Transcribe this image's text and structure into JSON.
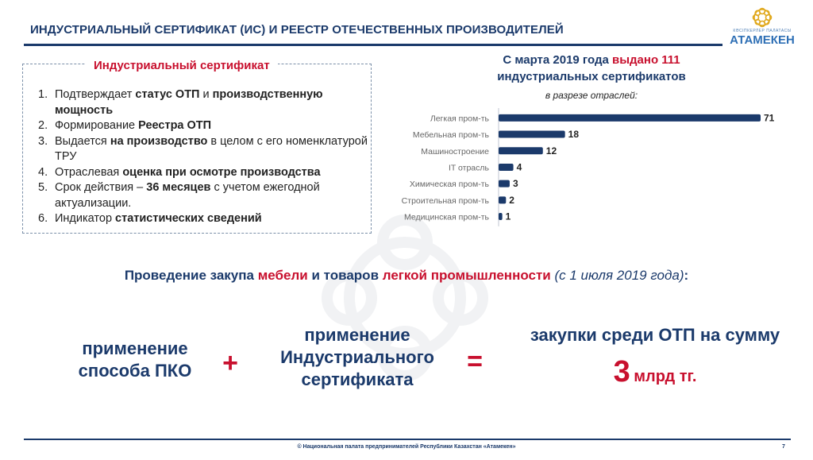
{
  "header": {
    "title": "ИНДУСТРИАЛЬНЫЙ СЕРТИФИКАТ (ИС) И РЕЕСТР ОТЕЧЕСТВЕННЫХ ПРОИЗВОДИТЕЛЕЙ",
    "logo_small": "КӘСІПКЕРЛЕР ПАЛАТАСЫ",
    "logo_name": "АТАМЕКЕН",
    "accent": "#1b3a6b",
    "red": "#c8102e"
  },
  "cert": {
    "title": "Индустриальный сертификат",
    "items": [
      {
        "num": "1.",
        "parts": [
          {
            "t": "Подтверждает ",
            "b": false
          },
          {
            "t": "статус ОТП",
            "b": true
          },
          {
            "t": " и ",
            "b": false
          },
          {
            "t": "производственную мощность",
            "b": true
          }
        ]
      },
      {
        "num": "2.",
        "parts": [
          {
            "t": "Формирование ",
            "b": false
          },
          {
            "t": "Реестра ОТП",
            "b": true
          }
        ]
      },
      {
        "num": "3.",
        "parts": [
          {
            "t": "Выдается ",
            "b": false
          },
          {
            "t": "на производство",
            "b": true
          },
          {
            "t": " в целом с его номенклатурой ТРУ",
            "b": false
          }
        ]
      },
      {
        "num": "4.",
        "parts": [
          {
            "t": "Отраслевая ",
            "b": false
          },
          {
            "t": "оценка при осмотре производства",
            "b": true
          }
        ]
      },
      {
        "num": "5.",
        "parts": [
          {
            "t": "Срок действия – ",
            "b": false
          },
          {
            "t": "36 месяцев",
            "b": true
          },
          {
            "t": " с учетом ежегодной актуализации.",
            "b": false
          }
        ]
      },
      {
        "num": "6.",
        "parts": [
          {
            "t": "Индикатор ",
            "b": false
          },
          {
            "t": "статистических сведений",
            "b": true
          }
        ]
      }
    ]
  },
  "issued": {
    "line1_prefix": "С марта 2019 года ",
    "line1_red": "выдано 111",
    "line2": "индустриальных сертификатов",
    "sub": "в разрезе отраслей:"
  },
  "chart_data": {
    "type": "bar",
    "orientation": "horizontal",
    "categories": [
      "Легкая пром-ть",
      "Мебельная пром-ть",
      "Машиностроение",
      "IT отрасль",
      "Химическая пром-ть",
      "Строительная пром-ть",
      "Медицинская пром-ть"
    ],
    "values": [
      71,
      18,
      12,
      4,
      3,
      2,
      1
    ],
    "data_labels": [
      "71",
      "18",
      "12",
      "4",
      "3",
      "2",
      "1"
    ],
    "bar_color": "#1b3a6b"
  },
  "procurement": {
    "prefix": "Проведение закупа ",
    "red1": "мебели",
    "mid": " и товаров ",
    "red2": "легкой промышленности",
    "italic": " (с 1 июля 2019 года)",
    "suffix": ":"
  },
  "formula": {
    "left": [
      "применение",
      "способа ПКО"
    ],
    "plus": "+",
    "middle": [
      "применение",
      "Индустриального",
      "сертификата"
    ],
    "equals": "=",
    "right": "закупки среди ОТП на сумму",
    "amount_number": "3",
    "amount_unit": "млрд тг."
  },
  "footer": {
    "text": "© Национальная палата предпринимателей Республики Казахстан «Атамекен»",
    "page": "7"
  }
}
